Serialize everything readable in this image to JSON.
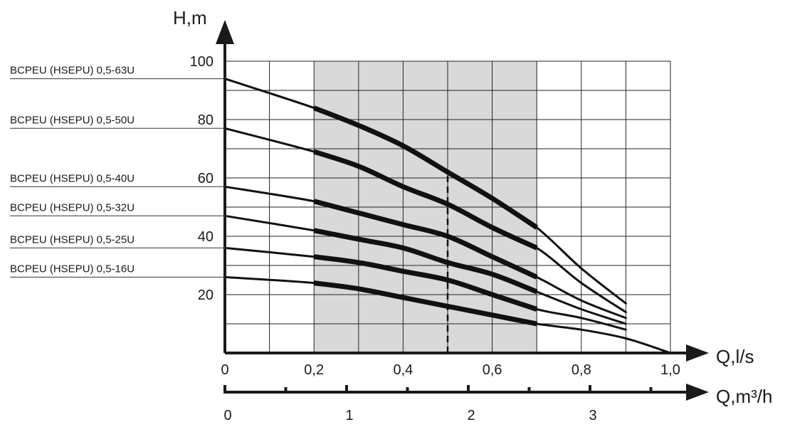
{
  "chart_data": {
    "type": "line",
    "title": "",
    "ylabel": "H,m",
    "xlabel": "Q,l/s",
    "xlabel2": "Q,m³/h",
    "xlim": [
      0,
      1.0
    ],
    "ylim": [
      0,
      100
    ],
    "x_ticks": [
      "0",
      "0,2",
      "0,4",
      "0,6",
      "0,8",
      "1,0"
    ],
    "y_ticks": [
      "20",
      "40",
      "60",
      "80",
      "100"
    ],
    "x2_ticks": [
      "0",
      "1",
      "2",
      "3"
    ],
    "grid": true,
    "working_range": {
      "x_from": 0.2,
      "x_to": 0.7,
      "fill": "#d9d9d9"
    },
    "nominal_flow": 0.5,
    "series": [
      {
        "name": "BCPEU (HSEPU) 0,5-63U",
        "x": [
          0,
          0.2,
          0.3,
          0.4,
          0.5,
          0.6,
          0.7,
          0.8,
          0.9
        ],
        "y": [
          94,
          84,
          78,
          71,
          62,
          53,
          43,
          29,
          17
        ]
      },
      {
        "name": "BCPEU (HSEPU) 0,5-50U",
        "x": [
          0,
          0.2,
          0.3,
          0.4,
          0.5,
          0.6,
          0.7,
          0.8,
          0.9
        ],
        "y": [
          77,
          69,
          64,
          57,
          51,
          43,
          36,
          24,
          14
        ]
      },
      {
        "name": "BCPEU (HSEPU) 0,5-40U",
        "x": [
          0,
          0.2,
          0.3,
          0.4,
          0.5,
          0.6,
          0.7,
          0.8,
          0.9
        ],
        "y": [
          57,
          52,
          48,
          44,
          40,
          33,
          26,
          18,
          12
        ]
      },
      {
        "name": "BCPEU (HSEPU) 0,5-32U",
        "x": [
          0,
          0.2,
          0.3,
          0.4,
          0.5,
          0.6,
          0.7,
          0.8,
          0.9
        ],
        "y": [
          47,
          42,
          39,
          36,
          31,
          27,
          21,
          15,
          10
        ]
      },
      {
        "name": "BCPEU (HSEPU) 0,5-25U",
        "x": [
          0,
          0.2,
          0.3,
          0.4,
          0.5,
          0.6,
          0.7,
          0.8,
          0.9
        ],
        "y": [
          36,
          33,
          31,
          28,
          25,
          20,
          15,
          12,
          8
        ]
      },
      {
        "name": "BCPEU (HSEPU) 0,5-16U",
        "x": [
          0,
          0.2,
          0.3,
          0.4,
          0.5,
          0.6,
          0.7,
          0.8,
          0.9,
          1.0
        ],
        "y": [
          26,
          24,
          22,
          19,
          16,
          13,
          10,
          8,
          5,
          0
        ]
      }
    ],
    "series_colors": {
      "curve": "#111111",
      "grid": "#222222",
      "axis": "#1a1a1a"
    }
  }
}
